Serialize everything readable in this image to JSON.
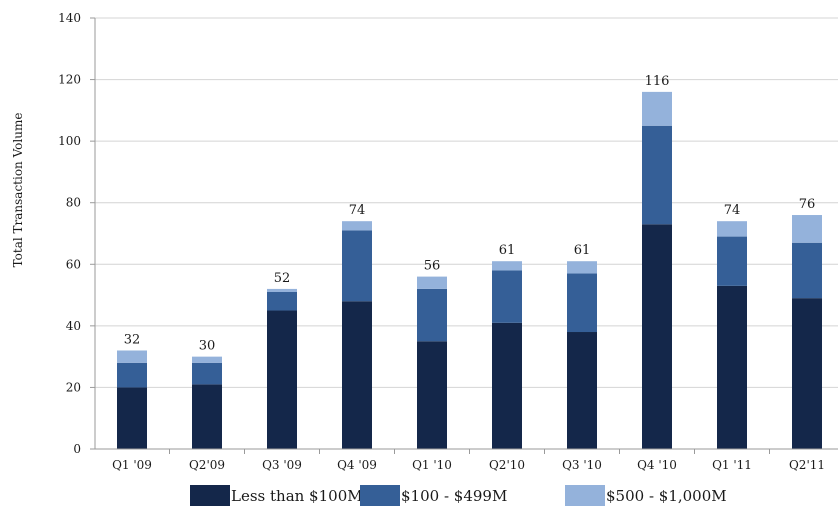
{
  "chart_data": {
    "type": "bar",
    "stacked": true,
    "title": "",
    "xlabel": "",
    "ylabel": "Total Transaction Volume",
    "ylim": [
      0,
      140
    ],
    "yticks": [
      0,
      20,
      40,
      60,
      80,
      100,
      120,
      140
    ],
    "grid": true,
    "legend_position": "bottom",
    "categories": [
      "Q1 '09",
      "Q2'09",
      "Q3 '09",
      "Q4 '09",
      "Q1 '10",
      "Q2'10",
      "Q3 '10",
      "Q4 '10",
      "Q1 '11",
      "Q2'11"
    ],
    "series": [
      {
        "name": "Less than $100M",
        "color": "#14274a",
        "values": [
          20,
          21,
          45,
          48,
          35,
          41,
          38,
          73,
          53,
          49
        ]
      },
      {
        "name": "$100 - $499M",
        "color": "#355f97",
        "values": [
          8,
          7,
          6,
          23,
          17,
          17,
          19,
          32,
          16,
          18
        ]
      },
      {
        "name": "$500 - $1,000M",
        "color": "#94b2db",
        "values": [
          4,
          2,
          1,
          3,
          4,
          3,
          4,
          11,
          5,
          9
        ]
      }
    ],
    "totals": [
      "32",
      "30",
      "52",
      "74",
      "56",
      "61",
      "61",
      "116",
      "74",
      "76"
    ]
  }
}
